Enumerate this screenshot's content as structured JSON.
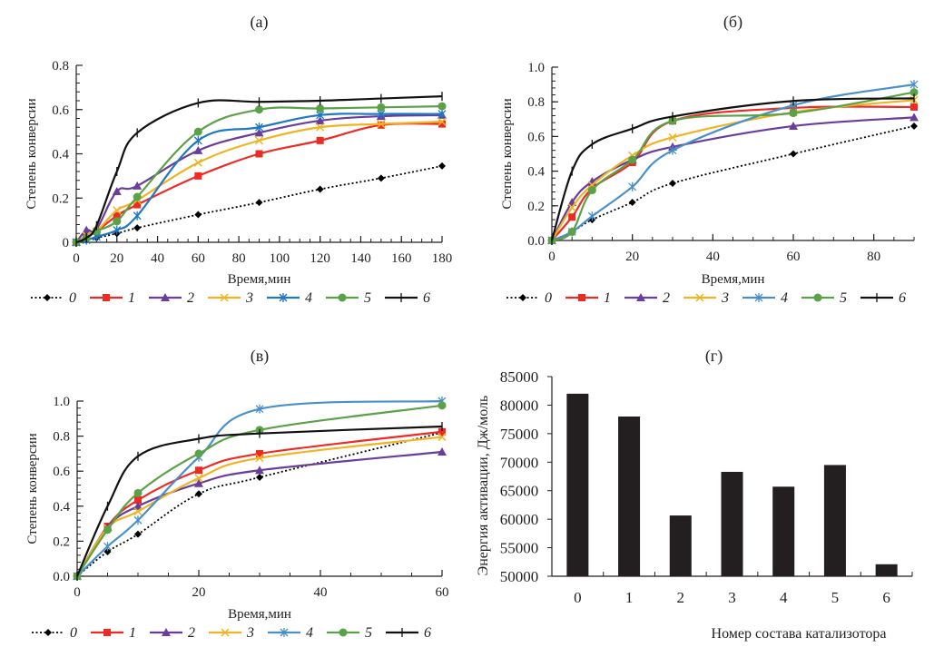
{
  "chart_data": [
    {
      "id": "a",
      "type": "line",
      "title": "(а)",
      "xlabel": "Время,мин",
      "ylabel": "Степень конверсии",
      "xlim": [
        0,
        180
      ],
      "ylim": [
        0,
        0.8
      ],
      "xticks": [
        0,
        20,
        40,
        60,
        80,
        100,
        120,
        140,
        160,
        180
      ],
      "yticks": [
        0,
        0.2,
        0.4,
        0.6,
        0.8
      ],
      "ytick_labels": [
        "0",
        "0.2",
        "0.4",
        "0.6",
        "0.8"
      ],
      "x_minor_step": 5,
      "y_minor_step": 0.04,
      "legend_position": "bottom",
      "x": [
        0,
        5,
        10,
        20,
        30,
        60,
        90,
        120,
        150,
        180
      ],
      "series": [
        {
          "name": "0",
          "color": "#000000",
          "marker": "diamond",
          "dash": true,
          "values": [
            0,
            0.01,
            0.02,
            0.04,
            0.065,
            0.125,
            0.18,
            0.24,
            0.29,
            0.345
          ]
        },
        {
          "name": "1",
          "color": "#ee2a24",
          "marker": "square",
          "dash": false,
          "values": [
            0,
            0.03,
            0.05,
            0.12,
            0.17,
            0.3,
            0.4,
            0.46,
            0.53,
            0.535
          ]
        },
        {
          "name": "2",
          "color": "#6a3d9a",
          "marker": "triangle",
          "dash": false,
          "values": [
            0,
            0.055,
            0.06,
            0.23,
            0.255,
            0.415,
            0.495,
            0.55,
            0.57,
            0.575
          ]
        },
        {
          "name": "3",
          "color": "#f0b323",
          "marker": "x",
          "dash": false,
          "values": [
            0,
            0.03,
            0.05,
            0.145,
            0.19,
            0.36,
            0.46,
            0.52,
            0.535,
            0.545
          ]
        },
        {
          "name": "4",
          "color": "#1f78c1",
          "marker": "star",
          "dash": false,
          "values": [
            0,
            0.01,
            0.025,
            0.055,
            0.12,
            0.46,
            0.52,
            0.575,
            0.58,
            0.58
          ]
        },
        {
          "name": "5",
          "color": "#5aa147",
          "marker": "circle",
          "dash": false,
          "values": [
            0,
            0.02,
            0.05,
            0.095,
            0.205,
            0.5,
            0.6,
            0.605,
            0.61,
            0.615
          ]
        },
        {
          "name": "6",
          "color": "#111111",
          "marker": "plus",
          "dash": false,
          "values": [
            0,
            0.02,
            0.075,
            0.32,
            0.495,
            0.63,
            0.635,
            0.64,
            0.65,
            0.66
          ]
        }
      ]
    },
    {
      "id": "b",
      "type": "line",
      "title": "(б)",
      "xlabel": "Время,мин",
      "ylabel": "Степень конверсии",
      "xlim": [
        0,
        90
      ],
      "ylim": [
        0,
        1.0
      ],
      "xticks": [
        0,
        20,
        40,
        60,
        80
      ],
      "yticks": [
        0,
        0.2,
        0.4,
        0.6,
        0.8,
        1.0
      ],
      "ytick_labels": [
        "0.0",
        "0.2",
        "0.4",
        "0.6",
        "0.8",
        "1.0"
      ],
      "x_minor_step": 5,
      "y_minor_step": 0.04,
      "legend_position": "bottom",
      "x": [
        0,
        5,
        10,
        20,
        30,
        60,
        90
      ],
      "series": [
        {
          "name": "0",
          "color": "#000000",
          "marker": "diamond",
          "dash": true,
          "values": [
            0,
            0.05,
            0.12,
            0.22,
            0.33,
            0.5,
            0.66
          ]
        },
        {
          "name": "1",
          "color": "#ee2a24",
          "marker": "square",
          "dash": false,
          "values": [
            0,
            0.135,
            0.3,
            0.45,
            0.69,
            0.765,
            0.77
          ]
        },
        {
          "name": "2",
          "color": "#6a3d9a",
          "marker": "triangle",
          "dash": false,
          "values": [
            0,
            0.22,
            0.34,
            0.465,
            0.54,
            0.66,
            0.71
          ]
        },
        {
          "name": "3",
          "color": "#f0b323",
          "marker": "x",
          "dash": false,
          "values": [
            0,
            0.19,
            0.32,
            0.49,
            0.595,
            0.74,
            0.81
          ]
        },
        {
          "name": "4",
          "color": "#4a90c8",
          "marker": "star",
          "dash": false,
          "values": [
            0,
            0.05,
            0.14,
            0.31,
            0.52,
            0.78,
            0.9
          ]
        },
        {
          "name": "5",
          "color": "#5aa147",
          "marker": "circle",
          "dash": false,
          "values": [
            0,
            0.05,
            0.29,
            0.465,
            0.69,
            0.735,
            0.855
          ]
        },
        {
          "name": "6",
          "color": "#111111",
          "marker": "plus",
          "dash": false,
          "values": [
            0,
            0.4,
            0.555,
            0.645,
            0.715,
            0.805,
            0.82
          ]
        }
      ]
    },
    {
      "id": "c",
      "type": "line",
      "title": "(в)",
      "xlabel": "Время,мин",
      "ylabel": "Степень конверсии",
      "xlim": [
        0,
        60
      ],
      "ylim": [
        0,
        1.0
      ],
      "xticks": [
        0,
        20,
        40,
        60
      ],
      "yticks": [
        0,
        0.2,
        0.4,
        0.6,
        0.8,
        1.0
      ],
      "ytick_labels": [
        "0.0",
        "0.2",
        "0.4",
        "0.6",
        "0.8",
        "1.0"
      ],
      "x_minor_step": 5,
      "y_minor_step": 0.04,
      "legend_position": "bottom",
      "x": [
        0,
        5,
        10,
        20,
        30,
        60
      ],
      "series": [
        {
          "name": "0",
          "color": "#000000",
          "marker": "diamond",
          "dash": true,
          "values": [
            0,
            0.14,
            0.24,
            0.47,
            0.565,
            0.82
          ]
        },
        {
          "name": "1",
          "color": "#ee2a24",
          "marker": "square",
          "dash": false,
          "values": [
            0,
            0.285,
            0.435,
            0.605,
            0.7,
            0.825
          ]
        },
        {
          "name": "2",
          "color": "#6a3d9a",
          "marker": "triangle",
          "dash": false,
          "values": [
            0,
            0.28,
            0.4,
            0.53,
            0.605,
            0.71
          ]
        },
        {
          "name": "3",
          "color": "#f0b323",
          "marker": "x",
          "dash": false,
          "values": [
            0,
            0.275,
            0.37,
            0.56,
            0.675,
            0.795
          ]
        },
        {
          "name": "4",
          "color": "#4a90c8",
          "marker": "star",
          "dash": false,
          "values": [
            0,
            0.17,
            0.32,
            0.68,
            0.955,
            1.0
          ]
        },
        {
          "name": "5",
          "color": "#5aa147",
          "marker": "circle",
          "dash": false,
          "values": [
            0,
            0.265,
            0.475,
            0.7,
            0.835,
            0.975
          ]
        },
        {
          "name": "6",
          "color": "#111111",
          "marker": "plus",
          "dash": false,
          "values": [
            0,
            0.4,
            0.685,
            0.785,
            0.815,
            0.855
          ]
        }
      ]
    },
    {
      "id": "d",
      "type": "bar",
      "title": "(г)",
      "xlabel": "Номер состава катализотора",
      "ylabel": "Энергия активации, Дж/моль",
      "categories": [
        "0",
        "1",
        "2",
        "3",
        "4",
        "5",
        "6"
      ],
      "values": [
        82000,
        78000,
        60650,
        68300,
        65700,
        69500,
        52100
      ],
      "ylim": [
        50000,
        85000
      ],
      "yticks": [
        50000,
        55000,
        60000,
        65000,
        70000,
        75000,
        80000,
        85000
      ],
      "ytick_labels": [
        "50000",
        "55000",
        "60000",
        "65000",
        "70000",
        "75000",
        "80000",
        "85000"
      ],
      "bar_color": "#231f20"
    }
  ]
}
